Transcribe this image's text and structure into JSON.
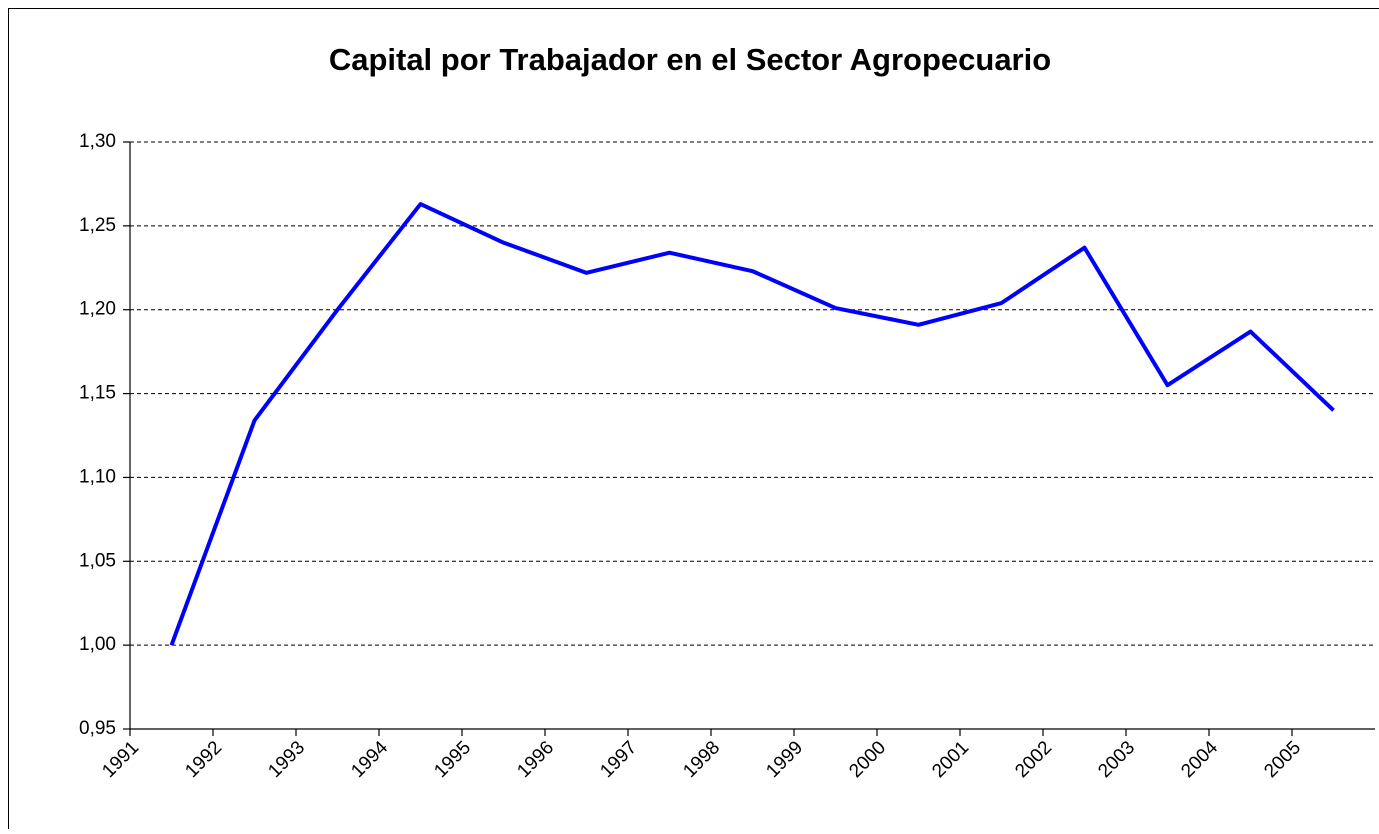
{
  "chart_data": {
    "type": "line",
    "title": "Capital por Trabajador en el Sector Agropecuario",
    "categories": [
      "1991",
      "1992",
      "1993",
      "1994",
      "1995",
      "1996",
      "1997",
      "1998",
      "1999",
      "2000",
      "2001",
      "2002",
      "2003",
      "2004",
      "2005"
    ],
    "series": [
      {
        "name": "Capital por Trabajador",
        "color": "#0000ff",
        "values": [
          1.0,
          1.134,
          1.2,
          1.263,
          1.24,
          1.222,
          1.234,
          1.223,
          1.201,
          1.191,
          1.204,
          1.237,
          1.155,
          1.187,
          1.14
        ]
      }
    ],
    "ylim": [
      0.95,
      1.3
    ],
    "yticks": [
      {
        "value": 0.95,
        "label": "0,95"
      },
      {
        "value": 1.0,
        "label": "1,00"
      },
      {
        "value": 1.05,
        "label": "1,05"
      },
      {
        "value": 1.1,
        "label": "1,10"
      },
      {
        "value": 1.15,
        "label": "1,15"
      },
      {
        "value": 1.2,
        "label": "1,20"
      },
      {
        "value": 1.25,
        "label": "1,25"
      },
      {
        "value": 1.3,
        "label": "1,30"
      }
    ],
    "grid": true
  }
}
